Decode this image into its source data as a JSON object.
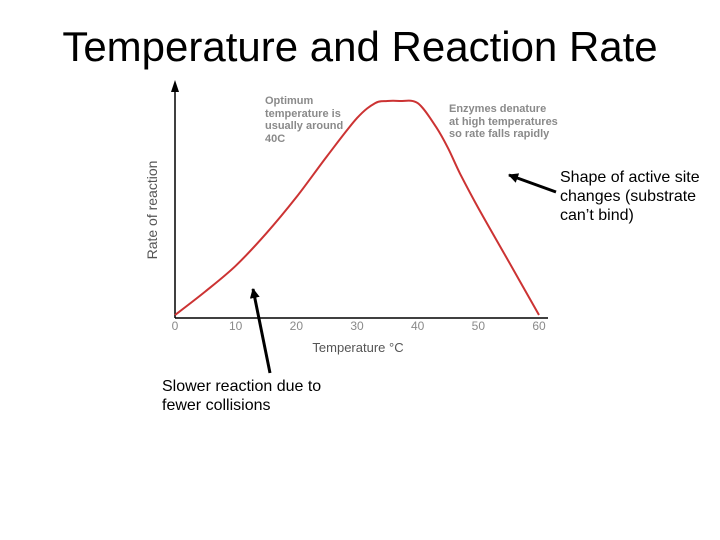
{
  "slide": {
    "title": "Temperature and Reaction Rate",
    "note_right": "Shape of active site changes (substrate can’t bind)",
    "note_left": "Slower reaction due to fewer collisions"
  },
  "chart_data": {
    "type": "line",
    "title": "",
    "xlabel": "Temperature °C",
    "ylabel": "Rate of reaction",
    "xlim": [
      0,
      60
    ],
    "ylim": [
      0,
      100
    ],
    "x_ticks": [
      "0",
      "10",
      "20",
      "30",
      "40",
      "50",
      "60"
    ],
    "grid": false,
    "series": [
      {
        "color": "#cc3333",
        "x": [
          0,
          5,
          10,
          15,
          20,
          25,
          30,
          33,
          35,
          37,
          40,
          43,
          45,
          47,
          50,
          55,
          60
        ],
        "y": [
          0,
          11,
          23,
          38,
          55,
          74,
          92,
          99,
          100,
          100,
          99,
          88,
          78,
          66,
          50,
          25,
          0
        ]
      }
    ],
    "annotations": [
      {
        "text": "Optimum temperature is usually around 40C"
      },
      {
        "text": "Enzymes denature at high temperatures so rate falls rapidly"
      }
    ]
  },
  "colors": {
    "curve": "#cc3333",
    "axis": "#000000",
    "chart_text": "#8a8a8a"
  }
}
